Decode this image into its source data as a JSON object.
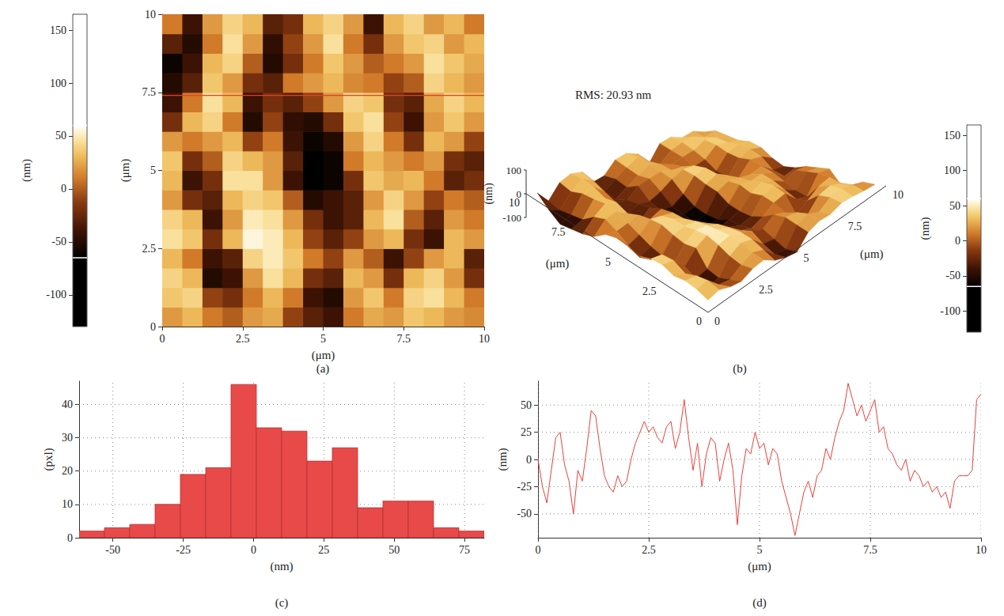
{
  "chart_data": [
    {
      "type": "heatmap",
      "title": "(a)",
      "x_label": "(μm)",
      "y_label": "(μm)",
      "xlim": [
        0,
        10
      ],
      "ylim": [
        0,
        10
      ],
      "xticks": [
        0,
        2.5,
        5,
        7.5,
        10
      ],
      "yticks": [
        0,
        2.5,
        5,
        7.5,
        10
      ],
      "z": [
        [
          20,
          30,
          10,
          0,
          20,
          25,
          -10,
          -30,
          -40,
          10,
          25,
          20,
          35,
          30,
          20,
          15
        ],
        [
          35,
          40,
          -10,
          -20,
          10,
          30,
          10,
          -40,
          -50,
          20,
          35,
          10,
          40,
          45,
          30,
          10
        ],
        [
          40,
          30,
          -50,
          -40,
          20,
          45,
          30,
          -20,
          -30,
          30,
          20,
          -20,
          30,
          40,
          20,
          -20
        ],
        [
          30,
          10,
          -40,
          -30,
          40,
          50,
          35,
          10,
          -10,
          20,
          0,
          -40,
          -10,
          20,
          30,
          -30
        ],
        [
          45,
          35,
          -20,
          30,
          55,
          50,
          30,
          -10,
          -30,
          -10,
          20,
          30,
          -20,
          -40,
          30,
          20
        ],
        [
          40,
          30,
          -40,
          20,
          50,
          45,
          20,
          -20,
          -40,
          -30,
          30,
          45,
          0,
          -30,
          20,
          10
        ],
        [
          20,
          -20,
          -30,
          30,
          40,
          35,
          0,
          -50,
          -40,
          -30,
          20,
          40,
          20,
          -10,
          10,
          0
        ],
        [
          30,
          -40,
          -20,
          45,
          45,
          20,
          -40,
          -70,
          -60,
          -20,
          35,
          25,
          30,
          10,
          -30,
          -20
        ],
        [
          35,
          -20,
          0,
          40,
          30,
          20,
          -30,
          -70,
          -60,
          10,
          30,
          20,
          10,
          20,
          -20,
          -30
        ],
        [
          20,
          10,
          20,
          30,
          -10,
          10,
          -40,
          -60,
          -50,
          20,
          40,
          10,
          -20,
          30,
          20,
          -10
        ],
        [
          -20,
          30,
          40,
          10,
          -50,
          -10,
          -45,
          -50,
          -20,
          35,
          45,
          -10,
          -40,
          20,
          35,
          20
        ],
        [
          -40,
          10,
          45,
          30,
          -40,
          -20,
          -30,
          -10,
          20,
          40,
          35,
          -20,
          -30,
          25,
          40,
          30
        ],
        [
          -50,
          -30,
          35,
          20,
          -20,
          -30,
          10,
          20,
          30,
          15,
          10,
          -10,
          0,
          40,
          30,
          20
        ],
        [
          -60,
          -40,
          30,
          40,
          0,
          -50,
          -20,
          10,
          35,
          20,
          0,
          10,
          20,
          45,
          35,
          25
        ],
        [
          -30,
          -50,
          10,
          45,
          20,
          -45,
          -10,
          20,
          45,
          10,
          -20,
          20,
          35,
          40,
          20,
          30
        ],
        [
          10,
          -40,
          20,
          40,
          30,
          -30,
          -20,
          30,
          40,
          20,
          -40,
          30,
          40,
          20,
          30,
          10
        ]
      ],
      "profile_y": 7.4,
      "colorbar": {
        "label": "(nm)",
        "range": [
          -130,
          165
        ],
        "ticks": [
          -100,
          -50,
          0,
          50,
          100,
          150
        ],
        "color_range": [
          -65,
          60
        ]
      }
    },
    {
      "type": "surface",
      "title": "(b)",
      "annotation": "RMS: 20.93 nm",
      "x_label": "(μm)",
      "y_label": "(μm)",
      "z_label": "(nm)",
      "xlim": [
        0,
        10
      ],
      "ylim": [
        0,
        10
      ],
      "xticks": [
        0,
        2.5,
        5,
        7.5,
        10
      ],
      "yticks": [
        0,
        2.5,
        5,
        7.5,
        10
      ],
      "zlim": [
        -100,
        100
      ],
      "zticks": [
        -100,
        0,
        100
      ],
      "z": [
        [
          20,
          30,
          10,
          0,
          20,
          25,
          -10,
          -30,
          -40,
          10,
          25,
          20,
          35,
          30,
          20,
          15
        ],
        [
          35,
          40,
          -10,
          -20,
          10,
          30,
          10,
          -40,
          -50,
          20,
          35,
          10,
          40,
          45,
          30,
          10
        ],
        [
          40,
          30,
          -50,
          -40,
          20,
          45,
          30,
          -20,
          -30,
          30,
          20,
          -20,
          30,
          40,
          20,
          -20
        ],
        [
          30,
          10,
          -40,
          -30,
          40,
          50,
          35,
          10,
          -10,
          20,
          0,
          -40,
          -10,
          20,
          30,
          -30
        ],
        [
          45,
          35,
          -20,
          30,
          55,
          50,
          30,
          -10,
          -30,
          -10,
          20,
          30,
          -20,
          -40,
          30,
          20
        ],
        [
          40,
          30,
          -40,
          20,
          50,
          45,
          20,
          -20,
          -40,
          -30,
          30,
          45,
          0,
          -30,
          20,
          10
        ],
        [
          20,
          -20,
          -30,
          30,
          40,
          35,
          0,
          -50,
          -40,
          -30,
          20,
          40,
          20,
          -10,
          10,
          0
        ],
        [
          30,
          -40,
          -20,
          45,
          45,
          20,
          -40,
          -70,
          -60,
          -20,
          35,
          25,
          30,
          10,
          -30,
          -20
        ],
        [
          35,
          -20,
          0,
          40,
          30,
          20,
          -30,
          -70,
          -60,
          10,
          30,
          20,
          10,
          20,
          -20,
          -30
        ],
        [
          20,
          10,
          20,
          30,
          -10,
          10,
          -40,
          -60,
          -50,
          20,
          40,
          10,
          -20,
          30,
          20,
          -10
        ],
        [
          -20,
          30,
          40,
          10,
          -50,
          -10,
          -45,
          -50,
          -20,
          35,
          45,
          -10,
          -40,
          20,
          35,
          20
        ],
        [
          -40,
          10,
          45,
          30,
          -40,
          -20,
          -30,
          -10,
          20,
          40,
          35,
          -20,
          -30,
          25,
          40,
          30
        ],
        [
          -50,
          -30,
          35,
          20,
          -20,
          -30,
          10,
          20,
          30,
          15,
          10,
          -10,
          0,
          40,
          30,
          20
        ],
        [
          -60,
          -40,
          30,
          40,
          0,
          -50,
          -20,
          10,
          35,
          20,
          0,
          10,
          20,
          45,
          35,
          25
        ],
        [
          -30,
          -50,
          10,
          45,
          20,
          -45,
          -10,
          20,
          45,
          10,
          -20,
          20,
          35,
          40,
          20,
          30
        ],
        [
          10,
          -40,
          20,
          40,
          30,
          -30,
          -20,
          30,
          40,
          20,
          -40,
          30,
          40,
          20,
          30,
          10
        ]
      ],
      "colorbar": {
        "label": "(nm)",
        "range": [
          -130,
          165
        ],
        "ticks": [
          -100,
          -50,
          0,
          50,
          100,
          150
        ],
        "color_range": [
          -65,
          60
        ]
      }
    },
    {
      "type": "histogram",
      "title": "(c)",
      "x_label": "(nm)",
      "y_label": "(pxl)",
      "bins": [
        -62,
        -53,
        -44,
        -35,
        -26,
        -17,
        -8,
        1,
        10,
        19,
        28,
        37,
        46,
        55,
        64,
        73,
        82
      ],
      "counts": [
        2,
        3,
        4,
        10,
        19,
        21,
        46,
        33,
        32,
        23,
        27,
        9,
        11,
        11,
        3,
        2
      ],
      "color": "#e84a4a",
      "xlim": [
        -62,
        82
      ],
      "ylim": [
        0,
        47
      ],
      "xticks": [
        -50,
        -25,
        0,
        25,
        50,
        75
      ],
      "yticks": [
        0,
        10,
        20,
        30,
        40
      ],
      "grid": true
    },
    {
      "type": "line",
      "title": "(d)",
      "x_label": "(μm)",
      "y_label": "(nm)",
      "x": [
        0,
        0.1,
        0.2,
        0.3,
        0.4,
        0.5,
        0.6,
        0.7,
        0.8,
        0.9,
        1,
        1.1,
        1.2,
        1.3,
        1.4,
        1.5,
        1.6,
        1.7,
        1.8,
        1.9,
        2,
        2.1,
        2.2,
        2.3,
        2.4,
        2.5,
        2.6,
        2.7,
        2.8,
        2.9,
        3,
        3.1,
        3.2,
        3.3,
        3.4,
        3.5,
        3.6,
        3.7,
        3.8,
        3.9,
        4,
        4.1,
        4.2,
        4.3,
        4.4,
        4.5,
        4.6,
        4.7,
        4.8,
        4.9,
        5,
        5.1,
        5.2,
        5.3,
        5.4,
        5.5,
        5.6,
        5.7,
        5.8,
        5.9,
        6,
        6.1,
        6.2,
        6.3,
        6.4,
        6.5,
        6.6,
        6.7,
        6.8,
        6.9,
        7,
        7.1,
        7.2,
        7.3,
        7.4,
        7.5,
        7.6,
        7.7,
        7.8,
        7.9,
        8,
        8.1,
        8.2,
        8.3,
        8.4,
        8.5,
        8.6,
        8.7,
        8.8,
        8.9,
        9,
        9.1,
        9.2,
        9.3,
        9.4,
        9.5,
        9.6,
        9.7,
        9.8,
        9.9,
        10
      ],
      "values": [
        0,
        -25,
        -40,
        -10,
        20,
        25,
        -5,
        -20,
        -50,
        -10,
        -20,
        10,
        45,
        40,
        10,
        -15,
        -25,
        -30,
        -15,
        -25,
        -20,
        0,
        15,
        25,
        35,
        25,
        30,
        20,
        15,
        30,
        35,
        10,
        25,
        55,
        20,
        -10,
        15,
        -25,
        5,
        20,
        15,
        -20,
        0,
        15,
        -10,
        -60,
        -15,
        10,
        5,
        25,
        10,
        15,
        -5,
        10,
        5,
        -20,
        -35,
        -50,
        -70,
        -50,
        -30,
        -20,
        -35,
        -15,
        -10,
        10,
        0,
        20,
        35,
        45,
        70,
        55,
        40,
        50,
        35,
        45,
        55,
        25,
        30,
        10,
        5,
        -5,
        -10,
        0,
        -20,
        -10,
        -15,
        -25,
        -20,
        -30,
        -25,
        -35,
        -30,
        -45,
        -20,
        -15,
        -15,
        -15,
        -10,
        55,
        60
      ],
      "color": "#e8413c",
      "xlim": [
        0,
        10
      ],
      "ylim": [
        -72,
        72
      ],
      "xticks": [
        0,
        2.5,
        5,
        7.5,
        10
      ],
      "yticks": [
        -50,
        -25,
        0,
        25,
        50
      ],
      "grid": true
    }
  ]
}
